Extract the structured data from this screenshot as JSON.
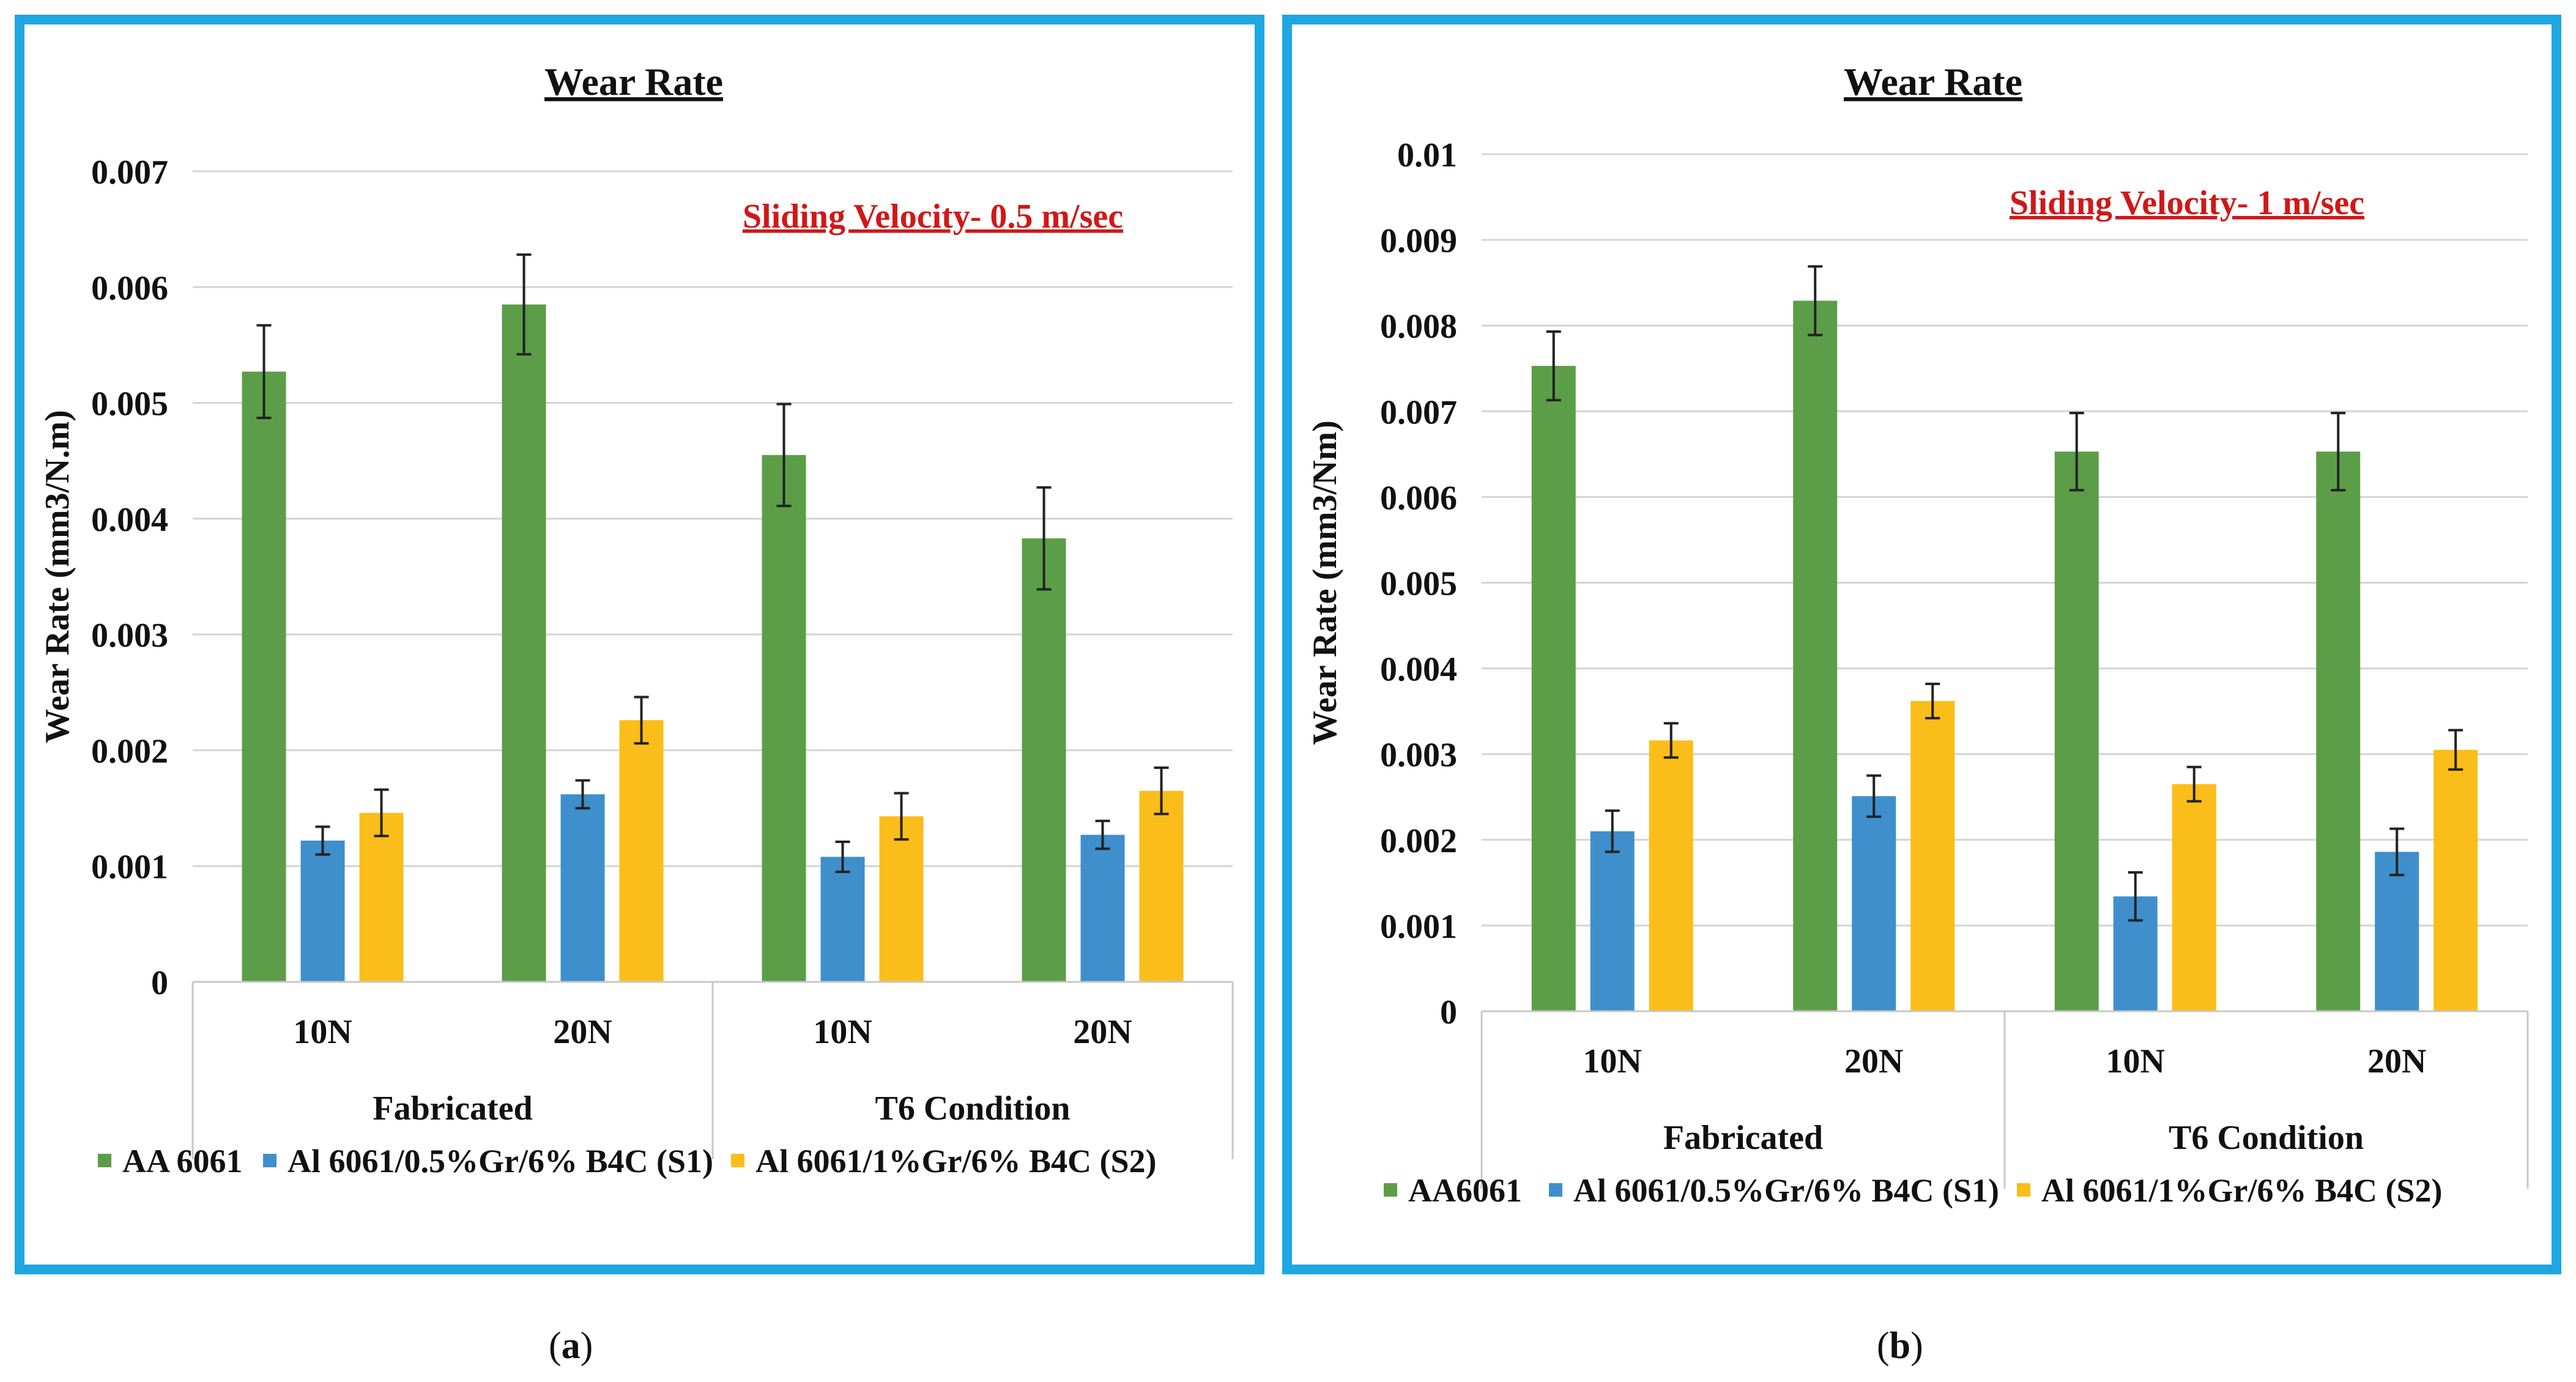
{
  "figure": {
    "captions": [
      "a",
      "b"
    ]
  },
  "chart_data": [
    {
      "type": "bar",
      "title": "Wear Rate",
      "annotation": "Sliding Velocity- 0.5 m/sec",
      "ylabel": "Wear Rate (mm3/N.m)",
      "xlabel": "",
      "ylim": [
        0,
        0.007
      ],
      "yticks": [
        0,
        0.001,
        0.002,
        0.003,
        0.004,
        0.005,
        0.006,
        0.007
      ],
      "ytick_labels": [
        "0",
        "0.001",
        "0.002",
        "0.003",
        "0.004",
        "0.005",
        "0.006",
        "0.007"
      ],
      "categories": [
        "10N",
        "20N",
        "10N",
        "20N"
      ],
      "groups": [
        "Fabricated",
        "T6 Condition"
      ],
      "grid": true,
      "legend_position": "bottom",
      "series": [
        {
          "name": "AA 6061",
          "color": "#5b9e47",
          "values": [
            0.00527,
            0.00585,
            0.00455,
            0.00383
          ],
          "errors": [
            0.0004,
            0.00043,
            0.00044,
            0.00044
          ]
        },
        {
          "name": "Al 6061/0.5%Gr/6% B4C (S1)",
          "color": "#3e8fcb",
          "values": [
            0.00122,
            0.00162,
            0.00108,
            0.00127
          ],
          "errors": [
            0.00012,
            0.00012,
            0.00013,
            0.00012
          ]
        },
        {
          "name": "Al 6061/1%Gr/6% B4C (S2)",
          "color": "#fbbd1a",
          "values": [
            0.00146,
            0.00226,
            0.00143,
            0.00165
          ],
          "errors": [
            0.0002,
            0.0002,
            0.0002,
            0.0002
          ]
        }
      ]
    },
    {
      "type": "bar",
      "title": "Wear Rate",
      "annotation": "Sliding Velocity- 1 m/sec",
      "ylabel": "Wear Rate (mm3/Nm)",
      "xlabel": "",
      "ylim": [
        0,
        0.01
      ],
      "yticks": [
        0,
        0.001,
        0.002,
        0.003,
        0.004,
        0.005,
        0.006,
        0.007,
        0.008,
        0.009,
        0.01
      ],
      "ytick_labels": [
        "0",
        "0.001",
        "0.002",
        "0.003",
        "0.004",
        "0.005",
        "0.006",
        "0.007",
        "0.008",
        "0.009",
        "0.01"
      ],
      "categories": [
        "10N",
        "20N",
        "10N",
        "20N"
      ],
      "groups": [
        "Fabricated",
        "T6 Condition"
      ],
      "grid": true,
      "legend_position": "bottom",
      "series": [
        {
          "name": "AA6061",
          "color": "#5b9e47",
          "values": [
            0.00753,
            0.00829,
            0.00653,
            0.00653
          ],
          "errors": [
            0.0004,
            0.0004,
            0.00045,
            0.00045
          ]
        },
        {
          "name": "Al 6061/0.5%Gr/6% B4C (S1)",
          "color": "#3e8fcb",
          "values": [
            0.0021,
            0.00251,
            0.00134,
            0.00186
          ],
          "errors": [
            0.00024,
            0.00024,
            0.00028,
            0.00027
          ]
        },
        {
          "name": "Al 6061/1%Gr/6% B4C (S2)",
          "color": "#fbbd1a",
          "values": [
            0.00316,
            0.00362,
            0.00265,
            0.00305
          ],
          "errors": [
            0.0002,
            0.0002,
            0.0002,
            0.00023
          ]
        }
      ]
    }
  ]
}
